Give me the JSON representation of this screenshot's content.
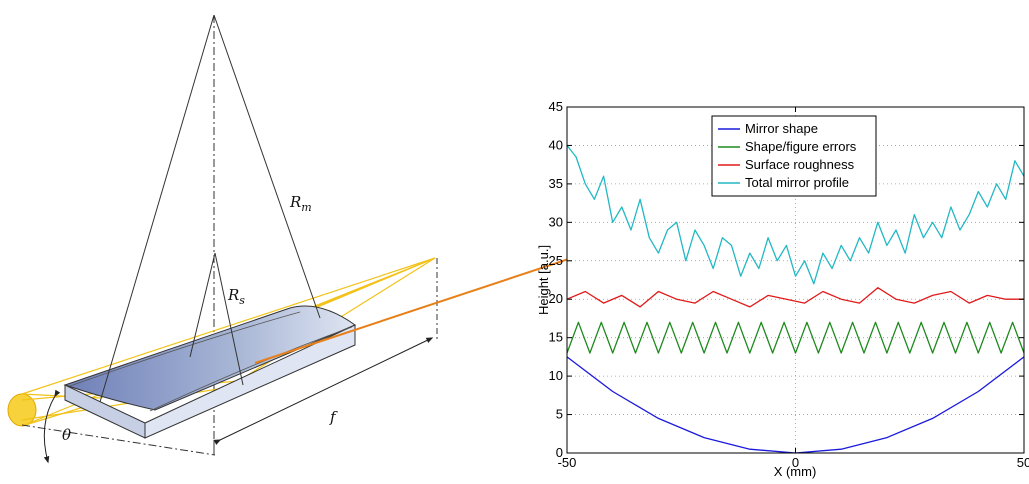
{
  "diagram": {
    "labels": {
      "R_m": {
        "main": "R",
        "sub": "m"
      },
      "R_s": {
        "main": "R",
        "sub": "s"
      },
      "f": "f",
      "theta": "θ"
    },
    "colors": {
      "beam": "#f2c218",
      "arrow": "#e8801a",
      "mirror_top": "#a9b7d6",
      "mirror_side": "#c6cfe4",
      "lines": "#333333"
    }
  },
  "chart_data": {
    "type": "line",
    "xlabel": "X (mm)",
    "ylabel": "Height [a.u.]",
    "xlim": [
      -50,
      50
    ],
    "ylim": [
      0,
      45
    ],
    "xticks": [
      -50,
      0,
      50
    ],
    "yticks": [
      0,
      5,
      10,
      15,
      20,
      25,
      30,
      35,
      40,
      45
    ],
    "grid": true,
    "legend_position": "top-center",
    "series": [
      {
        "name": "Mirror shape",
        "color": "#1a1adc",
        "x": [
          -50,
          -40,
          -30,
          -20,
          -10,
          0,
          10,
          20,
          30,
          40,
          50
        ],
        "y": [
          12.5,
          8.0,
          4.5,
          2.0,
          0.5,
          0.0,
          0.5,
          2.0,
          4.5,
          8.0,
          12.5
        ]
      },
      {
        "name": "Shape/figure errors",
        "color": "#1e8a1e",
        "x": [
          -50,
          -47.5,
          -45,
          -42.5,
          -40,
          -37.5,
          -35,
          -32.5,
          -30,
          -27.5,
          -25,
          -22.5,
          -20,
          -17.5,
          -15,
          -12.5,
          -10,
          -7.5,
          -5,
          -2.5,
          0,
          2.5,
          5,
          7.5,
          10,
          12.5,
          15,
          17.5,
          20,
          22.5,
          25,
          27.5,
          30,
          32.5,
          35,
          37.5,
          40,
          42.5,
          45,
          47.5,
          50
        ],
        "y": [
          13,
          17,
          13,
          17,
          13,
          17,
          13,
          17,
          13,
          17,
          13,
          17,
          13,
          17,
          13,
          17,
          13,
          17,
          13,
          17,
          13,
          17,
          13,
          17,
          13,
          17,
          13,
          17,
          13,
          17,
          13,
          17,
          13,
          17,
          13,
          17,
          13,
          17,
          13,
          17,
          13
        ]
      },
      {
        "name": "Surface roughness",
        "color": "#e01a1a",
        "x": [
          -50,
          -46,
          -42,
          -38,
          -34,
          -30,
          -26,
          -22,
          -18,
          -14,
          -10,
          -6,
          -2,
          2,
          6,
          10,
          14,
          18,
          22,
          26,
          30,
          34,
          38,
          42,
          46,
          50
        ],
        "y": [
          20,
          21,
          19.5,
          20.5,
          19,
          21,
          20,
          19.5,
          21,
          20,
          19,
          20.5,
          20,
          19.5,
          21,
          20,
          19.5,
          21.5,
          20,
          19.5,
          20.5,
          21,
          19.5,
          20.5,
          20,
          20
        ]
      },
      {
        "name": "Total mirror profile",
        "color": "#22b8c4",
        "x": [
          -50,
          -48,
          -46,
          -44,
          -42,
          -40,
          -38,
          -36,
          -34,
          -32,
          -30,
          -28,
          -26,
          -24,
          -22,
          -20,
          -18,
          -16,
          -14,
          -12,
          -10,
          -8,
          -6,
          -4,
          -2,
          0,
          2,
          4,
          6,
          8,
          10,
          12,
          14,
          16,
          18,
          20,
          22,
          24,
          26,
          28,
          30,
          32,
          34,
          36,
          38,
          40,
          42,
          44,
          46,
          48,
          50
        ],
        "y": [
          40,
          38.5,
          35,
          33,
          36,
          30,
          32,
          29,
          33,
          28,
          26,
          29,
          30,
          25,
          29,
          27,
          24,
          28,
          27,
          23,
          26,
          24,
          28,
          25,
          27,
          23,
          25,
          22,
          26,
          24,
          27,
          25,
          28,
          26,
          30,
          27,
          29,
          26,
          31,
          28,
          30,
          28,
          32,
          29,
          31,
          34,
          32,
          35,
          33,
          38,
          36
        ]
      }
    ]
  }
}
